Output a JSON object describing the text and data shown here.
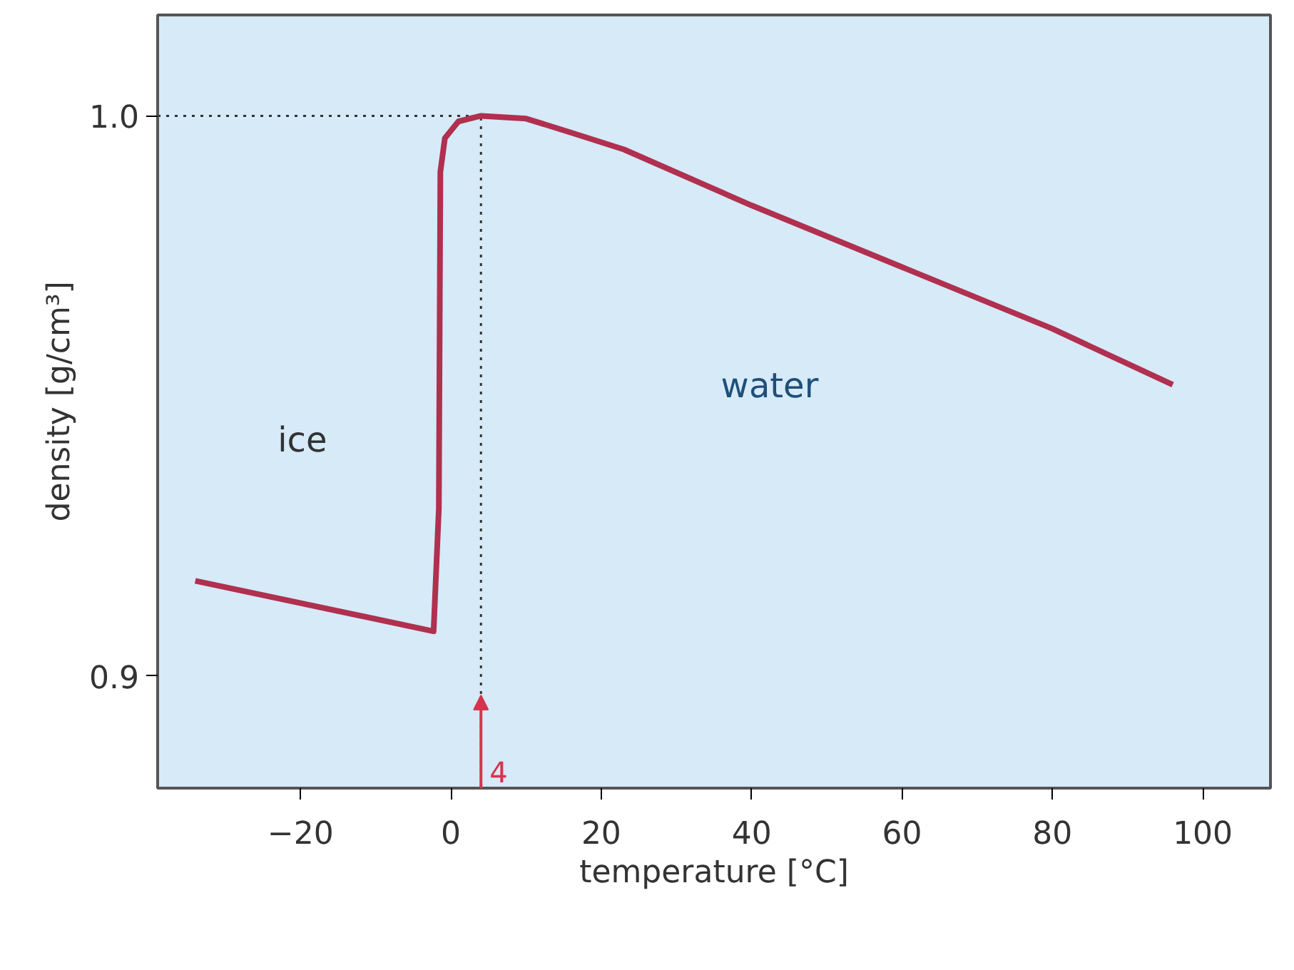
{
  "chart_data": {
    "type": "line",
    "xlabel": "temperature [°C]",
    "ylabel": "density [g/cm³]",
    "x": [
      -34,
      -2.3,
      -1.6,
      -1.5,
      -1.4,
      -0.8,
      1,
      4,
      10,
      16,
      23,
      40,
      60,
      80,
      96
    ],
    "series": [
      {
        "color": "#b0304f",
        "values": [
          0.917,
          0.908,
          0.93,
          0.96,
          0.99,
          0.996,
          0.999,
          1.0,
          0.9995,
          0.997,
          0.994,
          0.984,
          0.973,
          0.962,
          0.952
        ]
      }
    ],
    "xlim": [
      -39,
      109
    ],
    "ylim": [
      0.88,
      1.018
    ],
    "xticks": [
      -20,
      0,
      20,
      40,
      60,
      80,
      100
    ],
    "yticks": [
      {
        "value": 0.9,
        "label": "0.9"
      },
      {
        "value": 1.0,
        "label": "1.0"
      }
    ],
    "grid": false,
    "marker": "none",
    "line_style": "solid",
    "ref_lines": [
      {
        "axis": "x",
        "value": 4,
        "label": "4",
        "color": "#333333",
        "line_style": "dotted"
      },
      {
        "axis": "y",
        "value": 1.0,
        "label": null,
        "color": "#333333",
        "line_style": "dotted"
      }
    ],
    "annotations": [
      "ice",
      "water"
    ]
  }
}
